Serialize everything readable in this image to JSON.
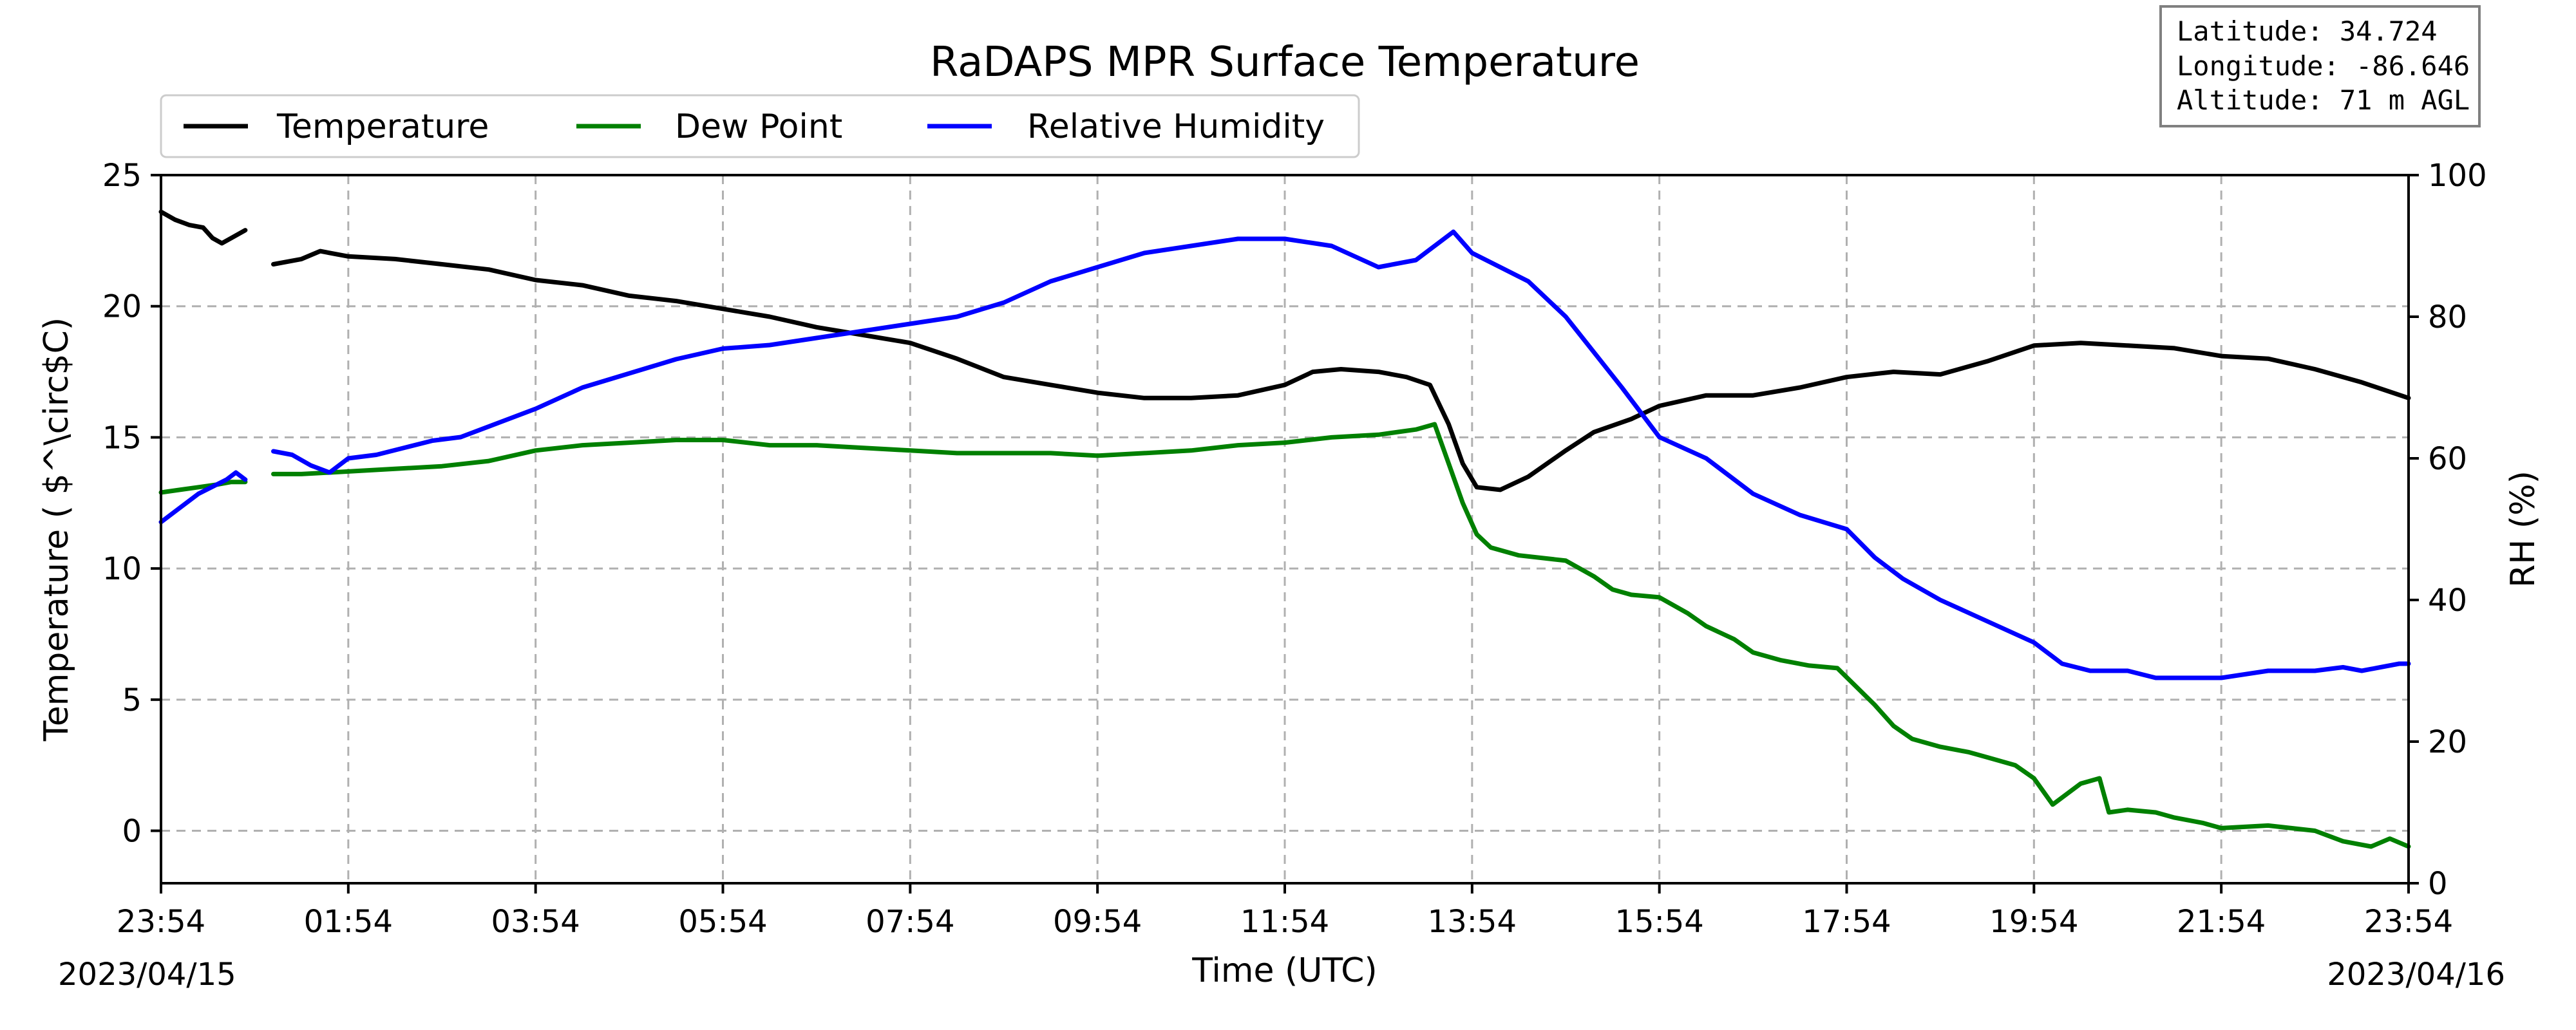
{
  "chart_data": {
    "type": "line",
    "title": "RaDAPS MPR Surface Temperature",
    "xlabel": "Time (UTC)",
    "ylabel": "Temperature ($^\\circ$C)",
    "ylabel_display": "Temperature ( $^\\circ$C)",
    "y2label": "RH (%)",
    "x_ticks": [
      "23:54",
      "01:54",
      "03:54",
      "05:54",
      "07:54",
      "09:54",
      "11:54",
      "13:54",
      "15:54",
      "17:54",
      "19:54",
      "21:54",
      "23:54"
    ],
    "date_start": "2023/04/15",
    "date_end": "2023/04/16",
    "xlim_hours": [
      0,
      24
    ],
    "ylim": [
      -2,
      25
    ],
    "y_ticks": [
      0,
      5,
      10,
      15,
      20,
      25
    ],
    "y2lim": [
      0,
      100
    ],
    "y2_ticks": [
      0,
      20,
      40,
      60,
      80,
      100
    ],
    "grid": true,
    "legend_position": "top-left",
    "info_box": {
      "latitude": "Latitude: 34.724",
      "longitude": "Longitude: -86.646",
      "altitude": "Altitude: 71 m AGL"
    },
    "colors": {
      "temperature": "#000000",
      "dew_point": "#008000",
      "relative_humidity": "#0000ff"
    },
    "series": [
      {
        "name": "Temperature",
        "axis": "left",
        "segments": [
          [
            [
              0.0,
              23.6
            ],
            [
              0.15,
              23.3
            ],
            [
              0.3,
              23.1
            ],
            [
              0.45,
              23.0
            ],
            [
              0.55,
              22.6
            ],
            [
              0.65,
              22.4
            ],
            [
              0.75,
              22.6
            ],
            [
              0.9,
              22.9
            ]
          ],
          [
            [
              1.2,
              21.6
            ],
            [
              1.5,
              21.8
            ],
            [
              1.7,
              22.1
            ],
            [
              2.0,
              21.9
            ],
            [
              2.5,
              21.8
            ],
            [
              3.0,
              21.6
            ],
            [
              3.5,
              21.4
            ],
            [
              4.0,
              21.0
            ],
            [
              4.5,
              20.8
            ],
            [
              5.0,
              20.4
            ],
            [
              5.5,
              20.2
            ],
            [
              6.0,
              19.9
            ],
            [
              6.5,
              19.6
            ],
            [
              7.0,
              19.2
            ],
            [
              7.5,
              18.9
            ],
            [
              8.0,
              18.6
            ],
            [
              8.5,
              18.0
            ],
            [
              9.0,
              17.3
            ],
            [
              9.5,
              17.0
            ],
            [
              10.0,
              16.7
            ],
            [
              10.5,
              16.5
            ],
            [
              11.0,
              16.5
            ],
            [
              11.5,
              16.6
            ],
            [
              12.0,
              17.0
            ],
            [
              12.3,
              17.5
            ],
            [
              12.6,
              17.6
            ],
            [
              13.0,
              17.5
            ],
            [
              13.3,
              17.3
            ],
            [
              13.55,
              17.0
            ],
            [
              13.75,
              15.5
            ],
            [
              13.9,
              14.0
            ],
            [
              14.05,
              13.1
            ],
            [
              14.3,
              13.0
            ],
            [
              14.6,
              13.5
            ],
            [
              15.0,
              14.5
            ],
            [
              15.3,
              15.2
            ],
            [
              15.7,
              15.7
            ],
            [
              16.0,
              16.2
            ],
            [
              16.5,
              16.6
            ],
            [
              17.0,
              16.6
            ],
            [
              17.5,
              16.9
            ],
            [
              18.0,
              17.3
            ],
            [
              18.5,
              17.5
            ],
            [
              19.0,
              17.4
            ],
            [
              19.5,
              17.9
            ],
            [
              20.0,
              18.5
            ],
            [
              20.5,
              18.6
            ],
            [
              21.0,
              18.5
            ],
            [
              21.5,
              18.4
            ],
            [
              22.0,
              18.1
            ],
            [
              22.5,
              18.0
            ],
            [
              23.0,
              17.6
            ],
            [
              23.5,
              17.1
            ],
            [
              24.0,
              16.5
            ]
          ]
        ]
      },
      {
        "name": "Dew Point",
        "axis": "left",
        "segments": [
          [
            [
              0.0,
              12.9
            ],
            [
              0.2,
              13.0
            ],
            [
              0.4,
              13.1
            ],
            [
              0.6,
              13.2
            ],
            [
              0.75,
              13.3
            ],
            [
              0.9,
              13.3
            ]
          ],
          [
            [
              1.2,
              13.6
            ],
            [
              1.5,
              13.6
            ],
            [
              2.0,
              13.7
            ],
            [
              2.5,
              13.8
            ],
            [
              3.0,
              13.9
            ],
            [
              3.5,
              14.1
            ],
            [
              4.0,
              14.5
            ],
            [
              4.5,
              14.7
            ],
            [
              5.0,
              14.8
            ],
            [
              5.5,
              14.9
            ],
            [
              6.0,
              14.9
            ],
            [
              6.5,
              14.7
            ],
            [
              7.0,
              14.7
            ],
            [
              7.5,
              14.6
            ],
            [
              8.0,
              14.5
            ],
            [
              8.5,
              14.4
            ],
            [
              9.0,
              14.4
            ],
            [
              9.5,
              14.4
            ],
            [
              10.0,
              14.3
            ],
            [
              10.5,
              14.4
            ],
            [
              11.0,
              14.5
            ],
            [
              11.5,
              14.7
            ],
            [
              12.0,
              14.8
            ],
            [
              12.5,
              15.0
            ],
            [
              13.0,
              15.1
            ],
            [
              13.4,
              15.3
            ],
            [
              13.6,
              15.5
            ],
            [
              13.75,
              14.0
            ],
            [
              13.9,
              12.5
            ],
            [
              14.05,
              11.3
            ],
            [
              14.2,
              10.8
            ],
            [
              14.5,
              10.5
            ],
            [
              15.0,
              10.3
            ],
            [
              15.3,
              9.7
            ],
            [
              15.5,
              9.2
            ],
            [
              15.7,
              9.0
            ],
            [
              16.0,
              8.9
            ],
            [
              16.3,
              8.3
            ],
            [
              16.5,
              7.8
            ],
            [
              16.8,
              7.3
            ],
            [
              17.0,
              6.8
            ],
            [
              17.3,
              6.5
            ],
            [
              17.6,
              6.3
            ],
            [
              17.9,
              6.2
            ],
            [
              18.1,
              5.5
            ],
            [
              18.3,
              4.8
            ],
            [
              18.5,
              4.0
            ],
            [
              18.7,
              3.5
            ],
            [
              19.0,
              3.2
            ],
            [
              19.3,
              3.0
            ],
            [
              19.5,
              2.8
            ],
            [
              19.8,
              2.5
            ],
            [
              20.0,
              2.0
            ],
            [
              20.2,
              1.0
            ],
            [
              20.5,
              1.8
            ],
            [
              20.7,
              2.0
            ],
            [
              20.8,
              0.7
            ],
            [
              21.0,
              0.8
            ],
            [
              21.3,
              0.7
            ],
            [
              21.5,
              0.5
            ],
            [
              21.8,
              0.3
            ],
            [
              22.0,
              0.1
            ],
            [
              22.5,
              0.2
            ],
            [
              23.0,
              0.0
            ],
            [
              23.3,
              -0.4
            ],
            [
              23.6,
              -0.6
            ],
            [
              23.8,
              -0.3
            ],
            [
              24.0,
              -0.6
            ]
          ]
        ]
      },
      {
        "name": "Relative Humidity",
        "axis": "right",
        "segments": [
          [
            [
              0.0,
              51
            ],
            [
              0.2,
              53
            ],
            [
              0.4,
              55
            ],
            [
              0.55,
              56
            ],
            [
              0.7,
              57
            ],
            [
              0.8,
              58
            ],
            [
              0.9,
              57
            ]
          ],
          [
            [
              1.2,
              61
            ],
            [
              1.4,
              60.5
            ],
            [
              1.6,
              59
            ],
            [
              1.8,
              58
            ],
            [
              2.0,
              60
            ],
            [
              2.3,
              60.5
            ],
            [
              2.6,
              61.5
            ],
            [
              2.9,
              62.5
            ],
            [
              3.2,
              63
            ],
            [
              3.6,
              65
            ],
            [
              4.0,
              67
            ],
            [
              4.5,
              70
            ],
            [
              5.0,
              72
            ],
            [
              5.5,
              74
            ],
            [
              6.0,
              75.5
            ],
            [
              6.5,
              76
            ],
            [
              7.0,
              77
            ],
            [
              7.5,
              78
            ],
            [
              8.0,
              79
            ],
            [
              8.5,
              80
            ],
            [
              9.0,
              82
            ],
            [
              9.5,
              85
            ],
            [
              10.0,
              87
            ],
            [
              10.5,
              89
            ],
            [
              11.0,
              90
            ],
            [
              11.5,
              91
            ],
            [
              12.0,
              91
            ],
            [
              12.5,
              90
            ],
            [
              13.0,
              87
            ],
            [
              13.4,
              88
            ],
            [
              13.6,
              90
            ],
            [
              13.8,
              92
            ],
            [
              14.0,
              89
            ],
            [
              14.3,
              87
            ],
            [
              14.6,
              85
            ],
            [
              15.0,
              80
            ],
            [
              15.3,
              75
            ],
            [
              15.6,
              70
            ],
            [
              16.0,
              63
            ],
            [
              16.5,
              60
            ],
            [
              17.0,
              55
            ],
            [
              17.5,
              52
            ],
            [
              18.0,
              50
            ],
            [
              18.3,
              46
            ],
            [
              18.6,
              43
            ],
            [
              19.0,
              40
            ],
            [
              19.5,
              37
            ],
            [
              20.0,
              34
            ],
            [
              20.3,
              31
            ],
            [
              20.6,
              30
            ],
            [
              21.0,
              30
            ],
            [
              21.3,
              29
            ],
            [
              21.6,
              29
            ],
            [
              22.0,
              29
            ],
            [
              22.5,
              30
            ],
            [
              23.0,
              30
            ],
            [
              23.3,
              30.5
            ],
            [
              23.5,
              30
            ],
            [
              23.7,
              30.5
            ],
            [
              23.9,
              31
            ],
            [
              24.0,
              31
            ]
          ]
        ]
      }
    ]
  }
}
